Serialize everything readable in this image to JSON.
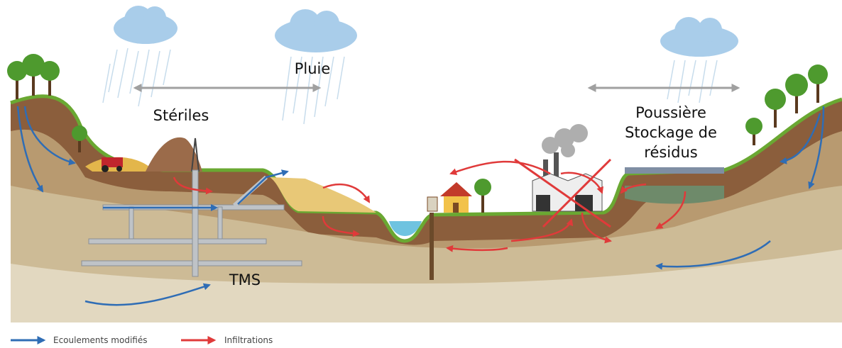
{
  "labels": {
    "rain": "Pluie",
    "waste_rock": "Stériles",
    "dust": "Poussière",
    "storage_line1": "Stockage de",
    "storage_line2": "résidus",
    "tms": "TMS"
  },
  "legend": [
    {
      "label": "Ecoulements modifiés"
    },
    {
      "label": "Infiltrations"
    }
  ]
}
